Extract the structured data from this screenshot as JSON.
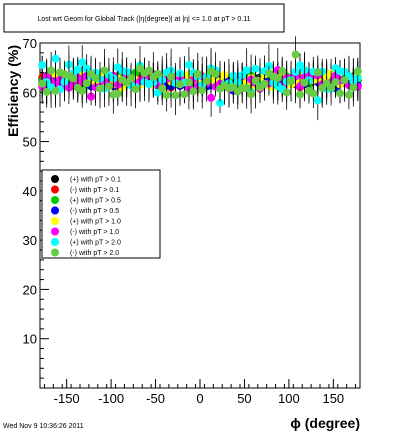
{
  "chart_data": {
    "type": "scatter",
    "title": "Lost wrt Geom for Global Track (|η(degree)| at |η| <= 1.0 at pT > 0.11",
    "xlabel": "ϕ (degree)",
    "ylabel": "Efficiency (%)",
    "xlim": [
      -180,
      180
    ],
    "ylim": [
      0,
      70
    ],
    "x_ticks": [
      -150,
      -100,
      -50,
      0,
      50,
      100,
      150
    ],
    "y_ticks": [
      10,
      20,
      30,
      40,
      50,
      60,
      70
    ],
    "x_tick_labels": [
      "-150",
      "-100",
      "-50",
      "0",
      "50",
      "100",
      "150"
    ],
    "y_tick_labels": [
      "10",
      "20",
      "30",
      "40",
      "50",
      "60",
      "70"
    ],
    "legend_position": "center-left",
    "footer": "Wed Nov  9 10:36:26 2011",
    "series": [
      {
        "name": "(+) with pT > 0.1",
        "color": "#000000",
        "center": 62.5,
        "spread": 0.8
      },
      {
        "name": "(-) with pT > 0.1",
        "color": "#ff0000",
        "center": 62.3,
        "spread": 0.9
      },
      {
        "name": "(+) with pT > 0.5",
        "color": "#00cc00",
        "center": 62.4,
        "spread": 1.0
      },
      {
        "name": "(-) with pT > 0.5",
        "color": "#0000ff",
        "center": 62.2,
        "spread": 1.0
      },
      {
        "name": "(+) with pT > 1.0",
        "color": "#ffff00",
        "center": 62.6,
        "spread": 1.2
      },
      {
        "name": "(-) with pT > 1.0",
        "color": "#ff00ff",
        "center": 62.1,
        "spread": 1.4
      },
      {
        "name": "(+) with pT > 2.0",
        "color": "#00ffff",
        "center": 62.8,
        "spread": 2.8
      },
      {
        "name": "(-) with pT > 2.0",
        "color": "#66cc44",
        "center": 62.0,
        "spread": 2.6
      }
    ],
    "n_bins": 72
  }
}
